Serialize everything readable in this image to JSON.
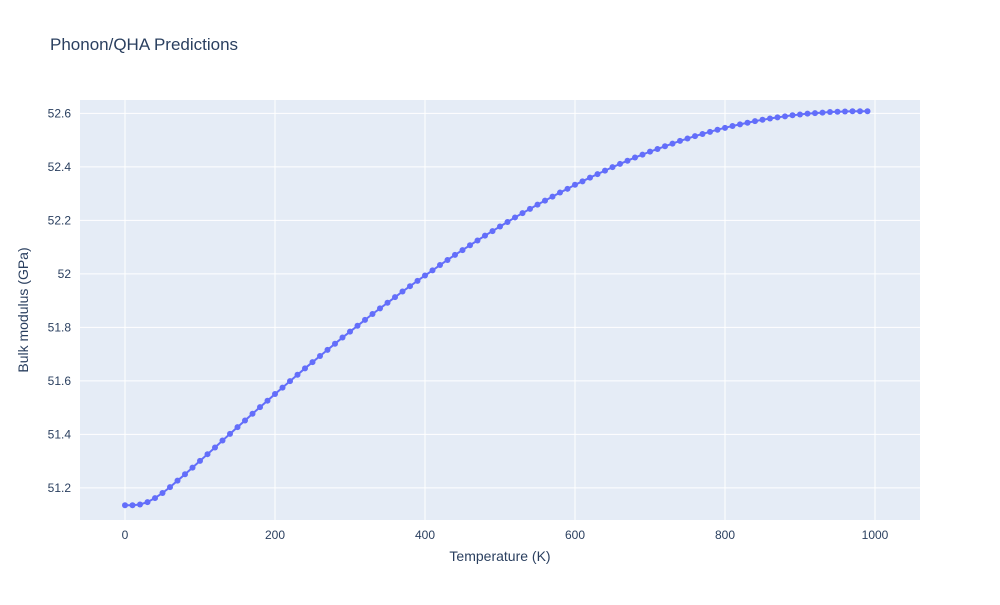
{
  "colors": {
    "plot_background": "#e5ecf6",
    "grid": "#ffffff",
    "series": "#636efa",
    "text": "#2a3f5f"
  },
  "chart_data": {
    "type": "line",
    "mode": "lines+markers",
    "title": "Phonon/QHA Predictions",
    "xlabel": "Temperature (K)",
    "ylabel": "Bulk modulus (GPa)",
    "xlim": [
      -60,
      1060
    ],
    "ylim": [
      51.08,
      52.65
    ],
    "xticks": [
      0,
      200,
      400,
      600,
      800,
      1000
    ],
    "xtick_labels": [
      "0",
      "200",
      "400",
      "600",
      "800",
      "1000"
    ],
    "yticks": [
      51.2,
      51.4,
      51.6,
      51.8,
      52.0,
      52.2,
      52.4,
      52.6
    ],
    "ytick_labels": [
      "51.2",
      "51.4",
      "51.6",
      "51.8",
      "52",
      "52.2",
      "52.4",
      "52.6"
    ],
    "grid": true,
    "series": [
      {
        "x": [
          0,
          10,
          20,
          30,
          40,
          50,
          60,
          70,
          80,
          90,
          100,
          110,
          120,
          130,
          140,
          150,
          160,
          170,
          180,
          190,
          200,
          210,
          220,
          230,
          240,
          250,
          260,
          270,
          280,
          290,
          300,
          310,
          320,
          330,
          340,
          350,
          360,
          370,
          380,
          390,
          400,
          410,
          420,
          430,
          440,
          450,
          460,
          470,
          480,
          490,
          500,
          510,
          520,
          530,
          540,
          550,
          560,
          570,
          580,
          590,
          600,
          610,
          620,
          630,
          640,
          650,
          660,
          670,
          680,
          690,
          700,
          710,
          720,
          730,
          740,
          750,
          760,
          770,
          780,
          790,
          800,
          810,
          820,
          830,
          840,
          850,
          860,
          870,
          880,
          890,
          900,
          910,
          920,
          930,
          940,
          950,
          960,
          970,
          980,
          990
        ],
        "values": [
          51.135,
          51.135,
          51.138,
          51.147,
          51.162,
          51.181,
          51.203,
          51.227,
          51.251,
          51.276,
          51.301,
          51.326,
          51.351,
          51.377,
          51.402,
          51.427,
          51.452,
          51.477,
          51.502,
          51.526,
          51.551,
          51.575,
          51.599,
          51.623,
          51.647,
          51.67,
          51.693,
          51.716,
          51.739,
          51.762,
          51.784,
          51.806,
          51.828,
          51.85,
          51.871,
          51.892,
          51.913,
          51.934,
          51.954,
          51.974,
          51.994,
          52.013,
          52.033,
          52.052,
          52.071,
          52.089,
          52.107,
          52.125,
          52.143,
          52.16,
          52.177,
          52.194,
          52.211,
          52.227,
          52.243,
          52.259,
          52.274,
          52.289,
          52.304,
          52.318,
          52.333,
          52.346,
          52.36,
          52.373,
          52.386,
          52.399,
          52.411,
          52.423,
          52.435,
          52.446,
          52.457,
          52.467,
          52.477,
          52.487,
          52.497,
          52.506,
          52.515,
          52.523,
          52.531,
          52.539,
          52.546,
          52.553,
          52.559,
          52.565,
          52.571,
          52.576,
          52.581,
          52.585,
          52.589,
          52.593,
          52.596,
          52.599,
          52.601,
          52.603,
          52.605,
          52.606,
          52.607,
          52.608,
          52.608,
          52.608
        ]
      }
    ]
  }
}
